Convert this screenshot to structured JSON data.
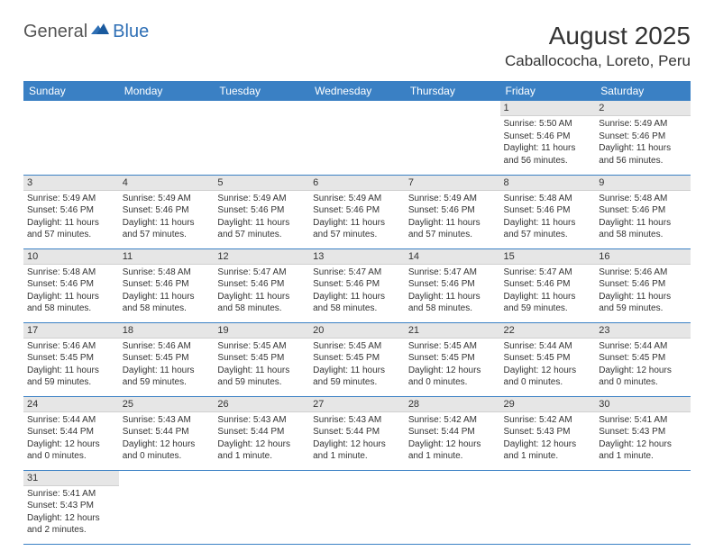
{
  "logo": {
    "text1": "General",
    "text2": "Blue"
  },
  "title": "August 2025",
  "location": "Caballococha, Loreto, Peru",
  "colors": {
    "header_bg": "#3a80c4",
    "header_fg": "#ffffff",
    "daynum_bg": "#e6e6e6",
    "row_border": "#3a80c4",
    "logo_accent": "#2e6fb5",
    "body_bg": "#ffffff",
    "text": "#333333"
  },
  "day_headers": [
    "Sunday",
    "Monday",
    "Tuesday",
    "Wednesday",
    "Thursday",
    "Friday",
    "Saturday"
  ],
  "first_weekday_index": 5,
  "days_in_month": 31,
  "days": {
    "1": {
      "sunrise": "5:50 AM",
      "sunset": "5:46 PM",
      "daylight": "11 hours and 56 minutes."
    },
    "2": {
      "sunrise": "5:49 AM",
      "sunset": "5:46 PM",
      "daylight": "11 hours and 56 minutes."
    },
    "3": {
      "sunrise": "5:49 AM",
      "sunset": "5:46 PM",
      "daylight": "11 hours and 57 minutes."
    },
    "4": {
      "sunrise": "5:49 AM",
      "sunset": "5:46 PM",
      "daylight": "11 hours and 57 minutes."
    },
    "5": {
      "sunrise": "5:49 AM",
      "sunset": "5:46 PM",
      "daylight": "11 hours and 57 minutes."
    },
    "6": {
      "sunrise": "5:49 AM",
      "sunset": "5:46 PM",
      "daylight": "11 hours and 57 minutes."
    },
    "7": {
      "sunrise": "5:49 AM",
      "sunset": "5:46 PM",
      "daylight": "11 hours and 57 minutes."
    },
    "8": {
      "sunrise": "5:48 AM",
      "sunset": "5:46 PM",
      "daylight": "11 hours and 57 minutes."
    },
    "9": {
      "sunrise": "5:48 AM",
      "sunset": "5:46 PM",
      "daylight": "11 hours and 58 minutes."
    },
    "10": {
      "sunrise": "5:48 AM",
      "sunset": "5:46 PM",
      "daylight": "11 hours and 58 minutes."
    },
    "11": {
      "sunrise": "5:48 AM",
      "sunset": "5:46 PM",
      "daylight": "11 hours and 58 minutes."
    },
    "12": {
      "sunrise": "5:47 AM",
      "sunset": "5:46 PM",
      "daylight": "11 hours and 58 minutes."
    },
    "13": {
      "sunrise": "5:47 AM",
      "sunset": "5:46 PM",
      "daylight": "11 hours and 58 minutes."
    },
    "14": {
      "sunrise": "5:47 AM",
      "sunset": "5:46 PM",
      "daylight": "11 hours and 58 minutes."
    },
    "15": {
      "sunrise": "5:47 AM",
      "sunset": "5:46 PM",
      "daylight": "11 hours and 59 minutes."
    },
    "16": {
      "sunrise": "5:46 AM",
      "sunset": "5:46 PM",
      "daylight": "11 hours and 59 minutes."
    },
    "17": {
      "sunrise": "5:46 AM",
      "sunset": "5:45 PM",
      "daylight": "11 hours and 59 minutes."
    },
    "18": {
      "sunrise": "5:46 AM",
      "sunset": "5:45 PM",
      "daylight": "11 hours and 59 minutes."
    },
    "19": {
      "sunrise": "5:45 AM",
      "sunset": "5:45 PM",
      "daylight": "11 hours and 59 minutes."
    },
    "20": {
      "sunrise": "5:45 AM",
      "sunset": "5:45 PM",
      "daylight": "11 hours and 59 minutes."
    },
    "21": {
      "sunrise": "5:45 AM",
      "sunset": "5:45 PM",
      "daylight": "12 hours and 0 minutes."
    },
    "22": {
      "sunrise": "5:44 AM",
      "sunset": "5:45 PM",
      "daylight": "12 hours and 0 minutes."
    },
    "23": {
      "sunrise": "5:44 AM",
      "sunset": "5:45 PM",
      "daylight": "12 hours and 0 minutes."
    },
    "24": {
      "sunrise": "5:44 AM",
      "sunset": "5:44 PM",
      "daylight": "12 hours and 0 minutes."
    },
    "25": {
      "sunrise": "5:43 AM",
      "sunset": "5:44 PM",
      "daylight": "12 hours and 0 minutes."
    },
    "26": {
      "sunrise": "5:43 AM",
      "sunset": "5:44 PM",
      "daylight": "12 hours and 1 minute."
    },
    "27": {
      "sunrise": "5:43 AM",
      "sunset": "5:44 PM",
      "daylight": "12 hours and 1 minute."
    },
    "28": {
      "sunrise": "5:42 AM",
      "sunset": "5:44 PM",
      "daylight": "12 hours and 1 minute."
    },
    "29": {
      "sunrise": "5:42 AM",
      "sunset": "5:43 PM",
      "daylight": "12 hours and 1 minute."
    },
    "30": {
      "sunrise": "5:41 AM",
      "sunset": "5:43 PM",
      "daylight": "12 hours and 1 minute."
    },
    "31": {
      "sunrise": "5:41 AM",
      "sunset": "5:43 PM",
      "daylight": "12 hours and 2 minutes."
    }
  },
  "labels": {
    "sunrise": "Sunrise:",
    "sunset": "Sunset:",
    "daylight": "Daylight:"
  }
}
